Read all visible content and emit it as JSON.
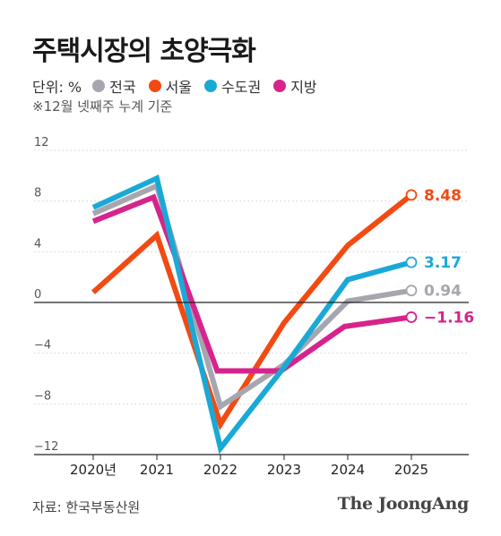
{
  "title": "주택시장의 초양극화",
  "unit_label": "단위: %",
  "note": "※12월 넷째주 누계 기준",
  "source": "자료: 한국부동산원",
  "brand": "The JoongAng",
  "colors": {
    "전국": "#a6a6b0",
    "서울": "#f24a12",
    "수도권": "#1aa9d6",
    "지방": "#d6248c",
    "axis": "#222222",
    "grid": "#cfcfcf"
  },
  "chart_data": {
    "type": "line",
    "categories": [
      "2020년",
      "2021",
      "2022",
      "2023",
      "2024",
      "2025"
    ],
    "ylim": [
      -12,
      12
    ],
    "yticks": [
      12,
      8,
      4,
      0,
      -4,
      -8,
      -12
    ],
    "ytick_labels": [
      "12",
      "8",
      "4",
      "0",
      "−4",
      "−8",
      "−12"
    ],
    "grid": "horizontal dotted",
    "legend_position": "top",
    "series": [
      {
        "name": "전국",
        "x": [
          0,
          1,
          2,
          3,
          4,
          5
        ],
        "values": [
          7.0,
          9.2,
          -8.2,
          -4.9,
          0.1,
          0.94
        ],
        "end_label": "0.94"
      },
      {
        "name": "서울",
        "x": [
          0,
          1,
          2,
          3,
          4,
          5
        ],
        "values": [
          0.8,
          5.3,
          -9.6,
          -1.6,
          4.5,
          8.48
        ],
        "end_label": "8.48"
      },
      {
        "name": "수도권",
        "x": [
          0,
          1,
          2,
          3,
          4,
          5
        ],
        "values": [
          7.5,
          9.8,
          -11.5,
          -5.1,
          1.8,
          3.17
        ],
        "end_label": "3.17"
      },
      {
        "name": "지방",
        "x": [
          0,
          0.95,
          1.95,
          2.95,
          3.95,
          5
        ],
        "values": [
          6.4,
          8.3,
          -5.4,
          -5.4,
          -1.9,
          -1.16
        ],
        "end_label": "−1.16"
      }
    ]
  }
}
